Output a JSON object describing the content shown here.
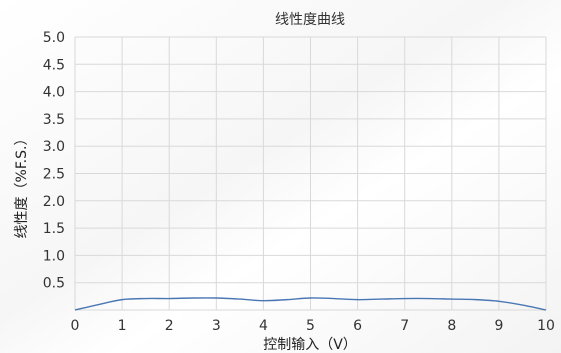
{
  "chart_data": {
    "type": "line",
    "title": "线性度曲线",
    "xlabel": "控制输入（V）",
    "ylabel": "线性度（%F.S.）",
    "xlim": [
      0,
      10
    ],
    "ylim": [
      0,
      5
    ],
    "x_ticks": [
      "0",
      "1",
      "2",
      "3",
      "4",
      "5",
      "6",
      "7",
      "8",
      "9",
      "10"
    ],
    "y_ticks": [
      "0.5",
      "1.0",
      "1.5",
      "2.0",
      "2.5",
      "3.0",
      "3.5",
      "4.0",
      "4.5",
      "5.0"
    ],
    "grid": true,
    "series": [
      {
        "color": "#4a77b4",
        "x": [
          0,
          0.5,
          1,
          1.5,
          2,
          2.5,
          3,
          3.5,
          4,
          4.5,
          5,
          5.5,
          6,
          6.5,
          7,
          7.5,
          8,
          8.5,
          9,
          9.5,
          10
        ],
        "y": [
          0.0,
          0.1,
          0.19,
          0.21,
          0.21,
          0.22,
          0.22,
          0.2,
          0.17,
          0.19,
          0.22,
          0.21,
          0.19,
          0.2,
          0.21,
          0.21,
          0.2,
          0.19,
          0.16,
          0.09,
          0.0
        ]
      }
    ]
  }
}
